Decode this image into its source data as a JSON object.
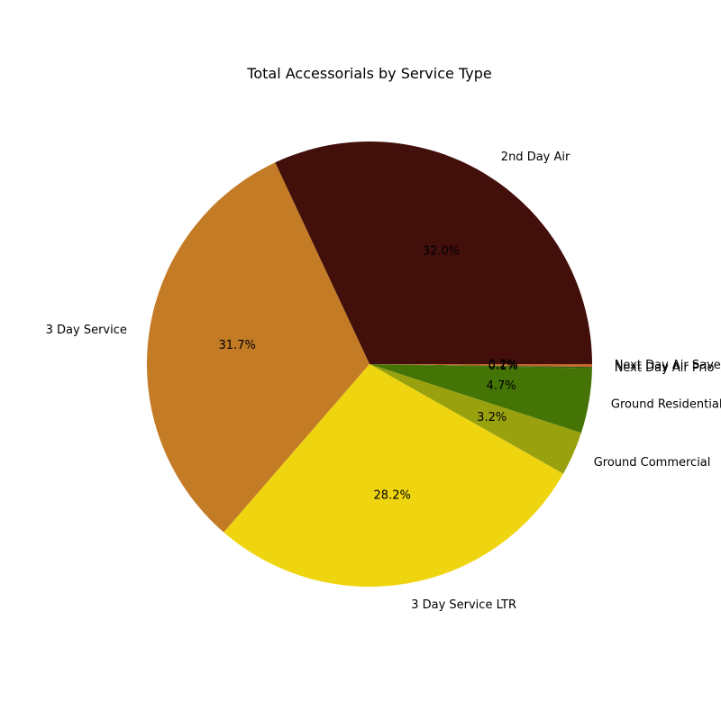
{
  "chart_data": {
    "type": "pie",
    "title": "Total Accessorials by Service Type",
    "start_angle_deg": 0,
    "direction": "counterclockwise",
    "slices": [
      {
        "label": "2nd Day Air",
        "value": 32.0,
        "pct_label": "32.0%",
        "color": "#420f0b"
      },
      {
        "label": "3 Day Service",
        "value": 31.7,
        "pct_label": "31.7%",
        "color": "#c37b25"
      },
      {
        "label": "3 Day Service LTR",
        "value": 28.2,
        "pct_label": "28.2%",
        "color": "#efd50f"
      },
      {
        "label": "Ground Commercial",
        "value": 3.2,
        "pct_label": "3.2%",
        "color": "#9aa10f"
      },
      {
        "label": "Ground Residential",
        "value": 4.7,
        "pct_label": "4.7%",
        "color": "#447405"
      },
      {
        "label": "Next Day Air Prio",
        "value": 0.1,
        "pct_label": "0.1%",
        "color": "#2f5d07"
      },
      {
        "label": "Next Day Air Saver",
        "value": 0.2,
        "pct_label": "0.2%",
        "color": "#c3682a"
      }
    ]
  }
}
